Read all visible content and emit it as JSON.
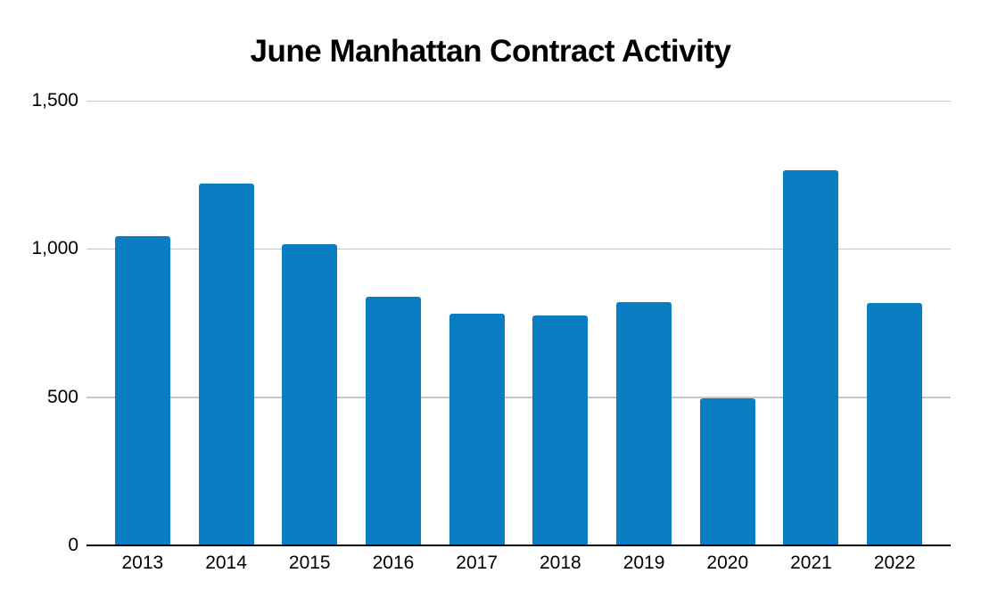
{
  "chart_data": {
    "type": "bar",
    "title": "June Manhattan Contract Activity",
    "categories": [
      "2013",
      "2014",
      "2015",
      "2016",
      "2017",
      "2018",
      "2019",
      "2020",
      "2021",
      "2022"
    ],
    "values": [
      1044,
      1219,
      1017,
      839,
      781,
      775,
      821,
      496,
      1266,
      817
    ],
    "xlabel": "",
    "ylabel": "",
    "ylim": [
      0,
      1500
    ],
    "yticks": [
      0,
      500,
      1000,
      1500
    ],
    "ytick_labels": [
      "0",
      "500",
      "1,000",
      "1,500"
    ],
    "grid": true,
    "legend": false,
    "colors": {
      "bar": "#0b7dc2",
      "gridline": "#c7c7c7",
      "axis": "#000000",
      "text": "#000000",
      "background": "#ffffff"
    }
  }
}
